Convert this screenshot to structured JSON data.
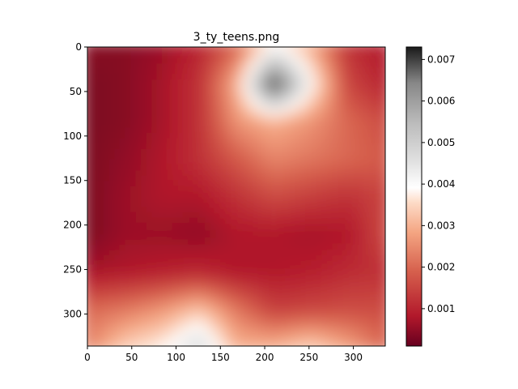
{
  "chart_data": {
    "type": "heatmap",
    "title": "3_ty_teens.png",
    "xlabel": "",
    "ylabel": "",
    "xlim": [
      0,
      336
    ],
    "ylim": [
      336,
      0
    ],
    "x_ticks": [
      0,
      50,
      100,
      150,
      200,
      250,
      300
    ],
    "y_ticks": [
      0,
      50,
      100,
      150,
      200,
      250,
      300
    ],
    "colormap": "RdGy",
    "colorbar": {
      "min": 0.0001,
      "max": 0.0073,
      "ticks": [
        0.001,
        0.002,
        0.003,
        0.004,
        0.005,
        0.006,
        0.007
      ],
      "tick_labels": [
        "0.001",
        "0.002",
        "0.003",
        "0.004",
        "0.005",
        "0.006",
        "0.007"
      ]
    },
    "grid": false,
    "grid_values": {
      "x": [
        0,
        42,
        84,
        126,
        168,
        210,
        252,
        294,
        336
      ],
      "y": [
        0,
        42,
        84,
        126,
        168,
        210,
        252,
        294,
        336
      ],
      "z": [
        [
          0.0004,
          0.0004,
          0.0006,
          0.001,
          0.002,
          0.004,
          0.003,
          0.0012,
          0.0008
        ],
        [
          0.0003,
          0.0004,
          0.0007,
          0.0012,
          0.003,
          0.0072,
          0.004,
          0.0015,
          0.001
        ],
        [
          0.0003,
          0.0004,
          0.0007,
          0.0012,
          0.0026,
          0.003,
          0.0026,
          0.002,
          0.0016
        ],
        [
          0.0003,
          0.0005,
          0.0008,
          0.0012,
          0.0018,
          0.0024,
          0.0022,
          0.002,
          0.0018
        ],
        [
          0.0003,
          0.0006,
          0.0008,
          0.0008,
          0.0012,
          0.0016,
          0.0014,
          0.0012,
          0.0015
        ],
        [
          0.0003,
          0.0006,
          0.0006,
          0.0005,
          0.0008,
          0.0008,
          0.0007,
          0.0008,
          0.0016
        ],
        [
          0.0007,
          0.0008,
          0.0009,
          0.001,
          0.0008,
          0.0008,
          0.0009,
          0.0011,
          0.0012
        ],
        [
          0.002,
          0.0022,
          0.0026,
          0.0032,
          0.0022,
          0.0014,
          0.0015,
          0.0016,
          0.0016
        ],
        [
          0.0024,
          0.0034,
          0.0038,
          0.0048,
          0.003,
          0.003,
          0.0034,
          0.0028,
          0.002
        ]
      ]
    }
  }
}
